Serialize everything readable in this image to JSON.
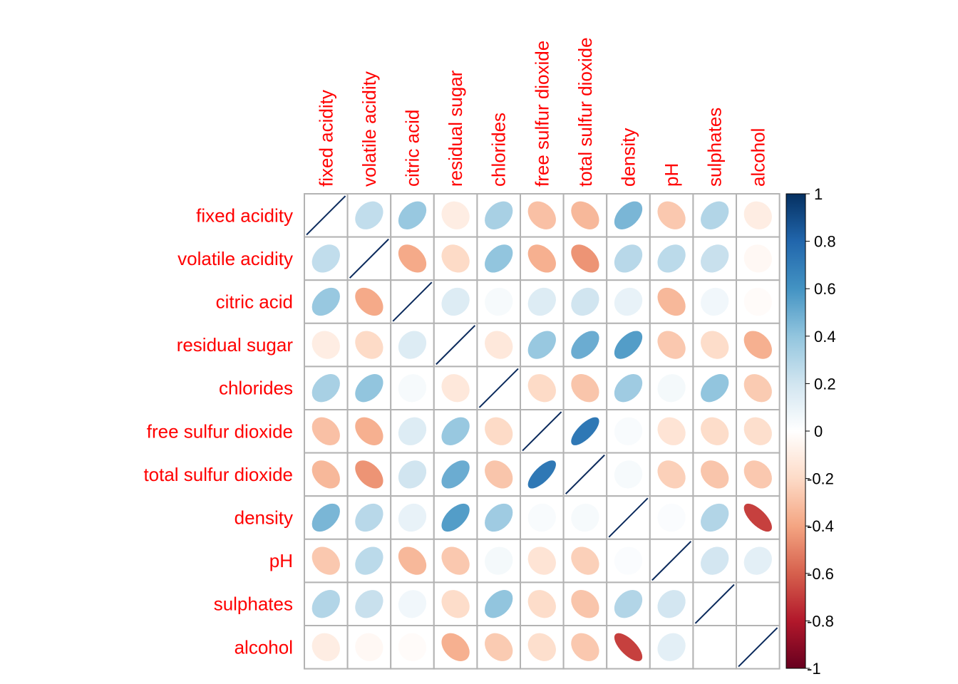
{
  "chart_data": {
    "type": "heatmap",
    "method": "ellipse",
    "title": "",
    "variables": [
      "fixed acidity",
      "volatile acidity",
      "citric acid",
      "residual sugar",
      "chlorides",
      "free sulfur dioxide",
      "total sulfur dioxide",
      "density",
      "pH",
      "sulphates",
      "alcohol"
    ],
    "matrix": [
      [
        1.0,
        0.25,
        0.38,
        -0.1,
        0.33,
        -0.3,
        -0.33,
        0.46,
        -0.27,
        0.3,
        -0.1
      ],
      [
        0.25,
        1.0,
        -0.38,
        -0.2,
        0.4,
        -0.36,
        -0.45,
        0.28,
        0.27,
        0.23,
        -0.04
      ],
      [
        0.38,
        -0.38,
        1.0,
        0.15,
        0.04,
        0.15,
        0.2,
        0.1,
        -0.33,
        0.06,
        -0.02
      ],
      [
        -0.1,
        -0.2,
        0.15,
        1.0,
        -0.13,
        0.38,
        0.5,
        0.56,
        -0.27,
        -0.19,
        -0.36
      ],
      [
        0.33,
        0.4,
        0.04,
        -0.13,
        1.0,
        -0.2,
        -0.28,
        0.36,
        0.05,
        0.4,
        -0.26
      ],
      [
        -0.3,
        -0.36,
        0.15,
        0.38,
        -0.2,
        1.0,
        0.72,
        0.03,
        -0.15,
        -0.19,
        -0.18
      ],
      [
        -0.33,
        -0.45,
        0.2,
        0.5,
        -0.28,
        0.72,
        1.0,
        0.04,
        -0.24,
        -0.28,
        -0.27
      ],
      [
        0.46,
        0.28,
        0.1,
        0.56,
        0.36,
        0.03,
        0.04,
        1.0,
        0.02,
        0.3,
        -0.69
      ],
      [
        -0.27,
        0.27,
        -0.33,
        -0.27,
        0.05,
        -0.15,
        -0.24,
        0.02,
        1.0,
        0.19,
        0.12
      ],
      [
        0.3,
        0.23,
        0.06,
        -0.19,
        0.4,
        -0.19,
        -0.28,
        0.3,
        0.19,
        1.0,
        0.0
      ],
      [
        -0.1,
        -0.04,
        -0.02,
        -0.36,
        -0.26,
        -0.18,
        -0.27,
        -0.69,
        0.12,
        0.0,
        1.0
      ]
    ],
    "colorbar": {
      "range": [
        -1,
        1
      ],
      "ticks": [
        "1",
        "0.8",
        "0.6",
        "0.4",
        "0.2",
        "0",
        "-0.2",
        "-0.4",
        "-0.6",
        "-0.8",
        "-1"
      ],
      "tick_values": [
        1,
        0.8,
        0.6,
        0.4,
        0.2,
        0,
        -0.2,
        -0.4,
        -0.6,
        -0.8,
        -1
      ],
      "position": "right"
    },
    "label_color": "#FF0000",
    "grid_color": "#B3B3B3",
    "palette": [
      "#67001F",
      "#B2182B",
      "#D6604D",
      "#F4A582",
      "#FDDBC7",
      "#FFFFFF",
      "#D1E5F0",
      "#92C5DE",
      "#4393C3",
      "#2166AC",
      "#053061"
    ]
  }
}
